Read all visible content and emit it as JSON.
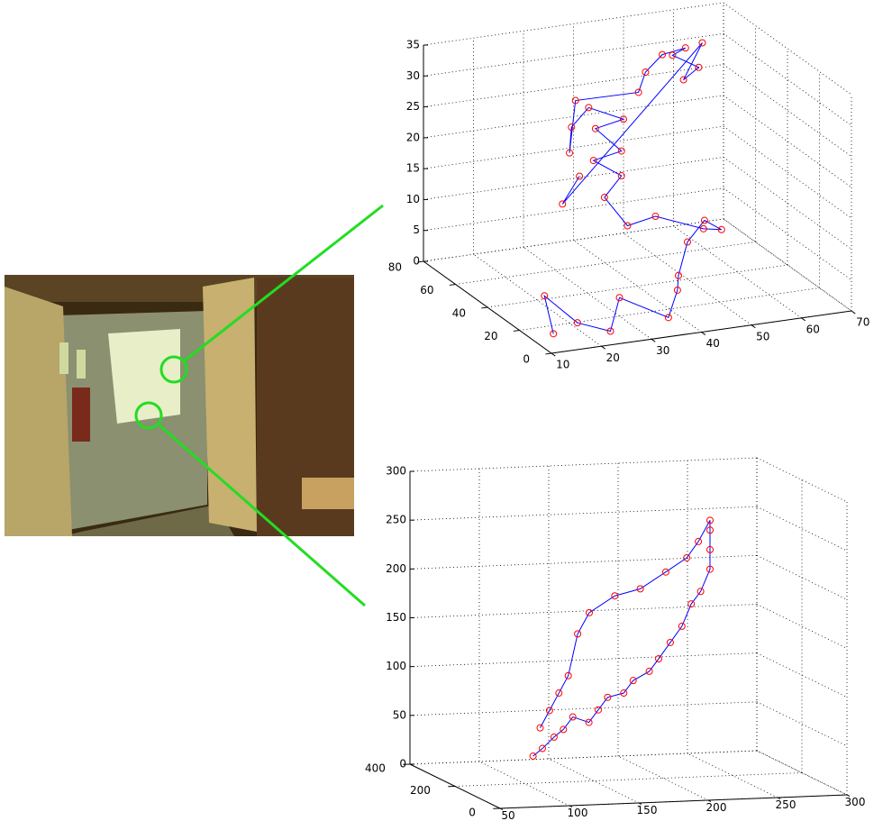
{
  "chart_data": [
    {
      "type": "scatter3d",
      "marker_color": "#ff0000",
      "line_color": "#0000ff",
      "grid": true,
      "x": [
        12,
        15,
        20,
        25,
        30,
        35,
        40,
        45,
        50,
        55,
        60,
        50,
        42,
        38,
        35,
        40,
        36,
        40,
        38,
        42,
        36,
        30,
        28,
        34,
        45,
        48,
        52,
        56,
        55,
        58,
        54,
        60,
        25,
        30
      ],
      "y": [
        5,
        20,
        15,
        10,
        20,
        5,
        15,
        30,
        40,
        45,
        50,
        30,
        35,
        40,
        45,
        50,
        55,
        50,
        60,
        55,
        58,
        50,
        45,
        60,
        55,
        60,
        62,
        60,
        65,
        58,
        55,
        62,
        40,
        45
      ],
      "z": [
        2,
        5,
        1,
        0,
        3,
        2,
        4,
        3,
        6,
        8,
        5,
        10,
        12,
        10,
        14,
        16,
        18,
        20,
        22,
        24,
        26,
        25,
        22,
        27,
        28,
        30,
        32,
        33,
        31,
        30,
        29,
        33,
        15,
        18
      ],
      "xlim": [
        10,
        70
      ],
      "ylim": [
        0,
        80
      ],
      "zlim": [
        0,
        35
      ],
      "xticks": [
        10,
        20,
        30,
        40,
        50,
        60,
        70
      ],
      "yticks": [
        0,
        20,
        40,
        60,
        80
      ],
      "zticks": [
        0,
        5,
        10,
        15,
        20,
        25,
        30,
        35
      ]
    },
    {
      "type": "scatter3d",
      "marker_color": "#ff0000",
      "line_color": "#0000ff",
      "grid": true,
      "x": [
        90,
        100,
        110,
        120,
        130,
        140,
        150,
        160,
        170,
        180,
        190,
        200,
        210,
        220,
        230,
        240,
        250,
        250,
        250,
        250,
        240,
        230,
        210,
        190,
        170,
        150,
        140,
        130,
        120,
        110,
        100
      ],
      "y": [
        100,
        120,
        130,
        150,
        170,
        160,
        180,
        200,
        190,
        210,
        200,
        220,
        230,
        240,
        260,
        280,
        300,
        300,
        300,
        300,
        290,
        280,
        250,
        240,
        230,
        220,
        210,
        190,
        170,
        150,
        130
      ],
      "z": [
        40,
        45,
        55,
        60,
        70,
        65,
        75,
        85,
        90,
        100,
        110,
        120,
        135,
        150,
        170,
        180,
        200,
        220,
        240,
        250,
        230,
        215,
        205,
        190,
        185,
        170,
        150,
        110,
        95,
        80,
        65
      ],
      "xlim": [
        50,
        300
      ],
      "ylim": [
        0,
        400
      ],
      "zlim": [
        0,
        300
      ],
      "xticks": [
        50,
        100,
        150,
        200,
        250,
        300
      ],
      "yticks": [
        0,
        200,
        400
      ],
      "zticks": [
        0,
        50,
        100,
        150,
        200,
        250,
        300
      ]
    }
  ]
}
